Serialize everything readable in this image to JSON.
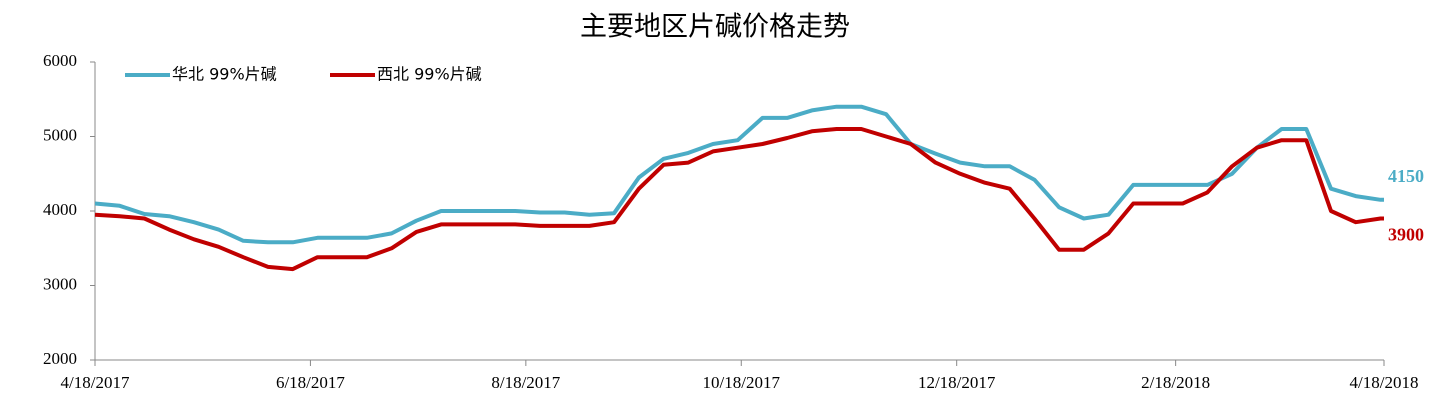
{
  "chart_data": {
    "type": "line",
    "title": "主要地区片碱价格走势",
    "x": [
      "2017-04-18",
      "2017-04-25",
      "2017-05-02",
      "2017-05-09",
      "2017-05-16",
      "2017-05-23",
      "2017-05-30",
      "2017-06-06",
      "2017-06-13",
      "2017-06-20",
      "2017-06-27",
      "2017-07-04",
      "2017-07-11",
      "2017-07-18",
      "2017-07-25",
      "2017-08-01",
      "2017-08-08",
      "2017-08-15",
      "2017-08-22",
      "2017-08-29",
      "2017-09-05",
      "2017-09-12",
      "2017-09-19",
      "2017-09-26",
      "2017-10-03",
      "2017-10-10",
      "2017-10-17",
      "2017-10-24",
      "2017-10-31",
      "2017-11-07",
      "2017-11-14",
      "2017-11-21",
      "2017-11-28",
      "2017-12-05",
      "2017-12-12",
      "2017-12-19",
      "2017-12-26",
      "2018-01-02",
      "2018-01-09",
      "2018-01-16",
      "2018-01-23",
      "2018-01-30",
      "2018-02-06",
      "2018-02-13",
      "2018-02-20",
      "2018-02-27",
      "2018-03-06",
      "2018-03-13",
      "2018-03-20",
      "2018-03-27",
      "2018-04-03",
      "2018-04-10",
      "2018-04-17",
      "2018-04-18"
    ],
    "series": [
      {
        "name": "华北 99%片碱",
        "color": "#4bacc6",
        "values": [
          4100,
          4070,
          3960,
          3930,
          3850,
          3750,
          3600,
          3580,
          3580,
          3640,
          3640,
          3640,
          3700,
          3870,
          4000,
          4000,
          4000,
          4000,
          3980,
          3980,
          3950,
          3970,
          4450,
          4700,
          4780,
          4900,
          4950,
          5250,
          5250,
          5350,
          5400,
          5400,
          5300,
          4900,
          4770,
          4650,
          4600,
          4600,
          4420,
          4050,
          3900,
          3950,
          4350,
          4350,
          4350,
          4350,
          4500,
          4850,
          5100,
          5100,
          4300,
          4200,
          4150,
          4150
        ],
        "end_label": "4150"
      },
      {
        "name": "西北 99%片碱",
        "color": "#c00000",
        "values": [
          3950,
          3930,
          3900,
          3750,
          3620,
          3520,
          3380,
          3250,
          3220,
          3380,
          3380,
          3380,
          3500,
          3720,
          3820,
          3820,
          3820,
          3820,
          3800,
          3800,
          3800,
          3850,
          4300,
          4620,
          4650,
          4800,
          4850,
          4900,
          4980,
          5070,
          5100,
          5100,
          5000,
          4900,
          4650,
          4500,
          4380,
          4300,
          3900,
          3480,
          3480,
          3700,
          4100,
          4100,
          4100,
          4250,
          4600,
          4850,
          4950,
          4950,
          4000,
          3850,
          3900,
          3900
        ],
        "end_label": "3900"
      }
    ],
    "xlim": [
      "2017-04-18",
      "2018-04-18"
    ],
    "xticks": [
      {
        "value": "2017-04-18",
        "label": "4/18/2017"
      },
      {
        "value": "2017-06-18",
        "label": "6/18/2017"
      },
      {
        "value": "2017-08-18",
        "label": "8/18/2017"
      },
      {
        "value": "2017-10-18",
        "label": "10/18/2017"
      },
      {
        "value": "2017-12-18",
        "label": "12/18/2017"
      },
      {
        "value": "2018-02-18",
        "label": "2/18/2018"
      },
      {
        "value": "2018-04-18",
        "label": "4/18/2018"
      }
    ],
    "ylim": [
      2000,
      6000
    ],
    "yticks": [
      2000,
      3000,
      4000,
      5000,
      6000
    ],
    "grid": false,
    "legend": "top-left"
  }
}
